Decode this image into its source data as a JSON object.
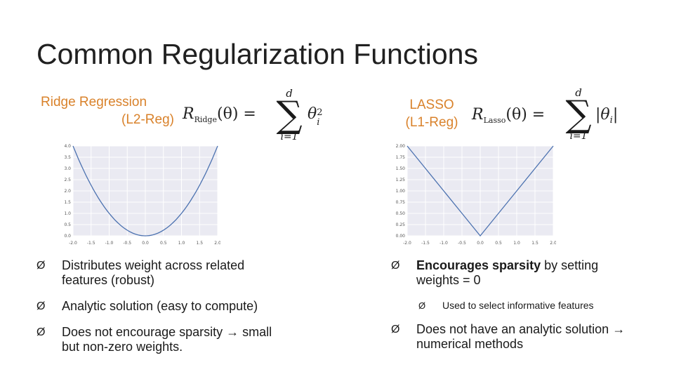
{
  "slide": {
    "title": "Common Regularization Functions"
  },
  "left": {
    "heading_line1": "Ridge Regression",
    "heading_line2": "(L2-Reg)",
    "formula": {
      "lhs": "R",
      "subscript": "Ridge",
      "arg": "(θ) =",
      "upper": "d",
      "lower": "i=1",
      "summand": "θ",
      "summand_sub": "i",
      "summand_sup": "2"
    },
    "chart": {
      "ticks_x": [
        "-2.0",
        "-1.5",
        "-1.0",
        "-0.5",
        "0.0",
        "0.5",
        "1.0",
        "1.5",
        "2.0"
      ],
      "ticks_y": [
        "4.0",
        "3.5",
        "3.0",
        "2.5",
        "2.0",
        "1.5",
        "1.0",
        "0.5",
        "0.0"
      ]
    },
    "bullets": [
      {
        "text": "Distributes weight across related features (robust)"
      },
      {
        "text": "Analytic solution (easy to compute)"
      },
      {
        "text_a": "Does not encourage sparsity ",
        "arrow": "→",
        "text_b": " small but non-zero weights."
      }
    ]
  },
  "right": {
    "heading_line1": "LASSO",
    "heading_line2": "(L1-Reg)",
    "formula": {
      "lhs": "R",
      "subscript": "Lasso",
      "arg": "(θ) =",
      "upper": "d",
      "lower": "i=1",
      "summand": "|θ",
      "summand_sub": "i",
      "summand_end": "|"
    },
    "chart": {
      "ticks_x": [
        "-2.0",
        "-1.5",
        "-1.0",
        "-0.5",
        "0.0",
        "0.5",
        "1.0",
        "1.5",
        "2.0"
      ],
      "ticks_y": [
        "2.00",
        "1.75",
        "1.50",
        "1.25",
        "1.00",
        "0.75",
        "0.50",
        "0.25",
        "0.00"
      ]
    },
    "bullets": [
      {
        "bold": "Encourages sparsity",
        "text": " by setting weights = 0"
      },
      {
        "text": "Used to select informative features"
      },
      {
        "text_a": "Does not have an analytic solution ",
        "arrow": "→",
        "text_b": " numerical methods"
      }
    ]
  },
  "bullet_marker": "Ø",
  "chart_data": [
    {
      "type": "line",
      "x": [
        -2.0,
        -1.5,
        -1.0,
        -0.5,
        0.0,
        0.5,
        1.0,
        1.5,
        2.0
      ],
      "series": [
        {
          "values": [
            4.0,
            2.25,
            1.0,
            0.25,
            0.0,
            0.25,
            1.0,
            2.25,
            4.0
          ]
        }
      ],
      "xlim": [
        -2.0,
        2.0
      ],
      "ylim": [
        0.0,
        4.0
      ],
      "grid": true,
      "color": "#4c72b0"
    },
    {
      "type": "line",
      "x": [
        -2.0,
        -1.5,
        -1.0,
        -0.5,
        0.0,
        0.5,
        1.0,
        1.5,
        2.0
      ],
      "series": [
        {
          "values": [
            2.0,
            1.5,
            1.0,
            0.5,
            0.0,
            0.5,
            1.0,
            1.5,
            2.0
          ]
        }
      ],
      "xlim": [
        -2.0,
        2.0
      ],
      "ylim": [
        0.0,
        2.0
      ],
      "grid": true,
      "color": "#4c72b0"
    }
  ]
}
